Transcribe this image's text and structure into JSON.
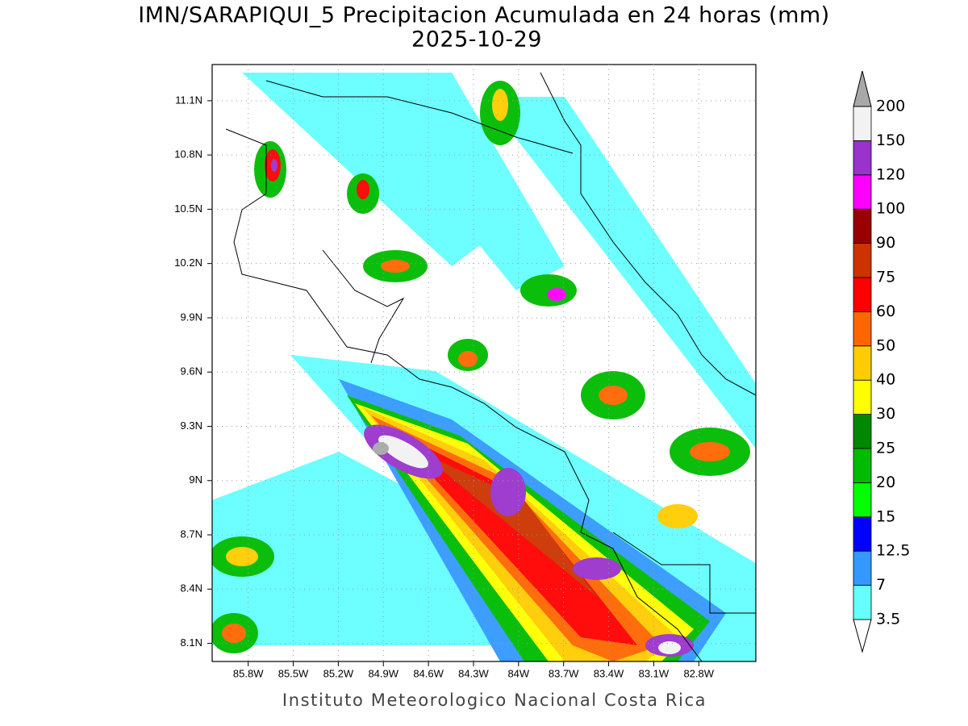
{
  "title": "IMN/SARAPIQUI_5 Precipitacion Acumulada en 24 horas (mm)",
  "subtitle": "2025-10-29",
  "footer": "Instituto Meteorologico Nacional Costa Rica",
  "map": {
    "xlim": [
      -86.04,
      -82.42
    ],
    "ylim": [
      8.0,
      11.3
    ],
    "grid": true,
    "xticks": [
      {
        "value": -85.8,
        "label": "85.8W"
      },
      {
        "value": -85.5,
        "label": "85.5W"
      },
      {
        "value": -85.2,
        "label": "85.2W"
      },
      {
        "value": -84.9,
        "label": "84.9W"
      },
      {
        "value": -84.6,
        "label": "84.6W"
      },
      {
        "value": -84.3,
        "label": "84.3W"
      },
      {
        "value": -84.0,
        "label": "84W"
      },
      {
        "value": -83.7,
        "label": "83.7W"
      },
      {
        "value": -83.4,
        "label": "83.4W"
      },
      {
        "value": -83.1,
        "label": "83.1W"
      },
      {
        "value": -82.8,
        "label": "82.8W"
      }
    ],
    "yticks": [
      {
        "value": 8.1,
        "label": "8.1N"
      },
      {
        "value": 8.4,
        "label": "8.4N"
      },
      {
        "value": 8.7,
        "label": "8.7N"
      },
      {
        "value": 9.0,
        "label": "9N"
      },
      {
        "value": 9.3,
        "label": "9.3N"
      },
      {
        "value": 9.6,
        "label": "9.6N"
      },
      {
        "value": 9.9,
        "label": "9.9N"
      },
      {
        "value": 10.2,
        "label": "10.2N"
      },
      {
        "value": 10.5,
        "label": "10.5N"
      },
      {
        "value": 10.8,
        "label": "10.8N"
      },
      {
        "value": 11.1,
        "label": "11.1N"
      }
    ]
  },
  "colorbar": {
    "levels": [
      3.5,
      7,
      12.5,
      15,
      20,
      25,
      30,
      40,
      50,
      60,
      75,
      90,
      100,
      120,
      150,
      200
    ],
    "colors": [
      "#ffffff",
      "#66ffff",
      "#3399ff",
      "#0000ff",
      "#00ff00",
      "#00bb00",
      "#008800",
      "#ffff00",
      "#ffcc00",
      "#ff6600",
      "#ff0000",
      "#cc3300",
      "#990000",
      "#ff00ff",
      "#9933cc",
      "#f2f2f2",
      "#a8a8a8"
    ]
  }
}
